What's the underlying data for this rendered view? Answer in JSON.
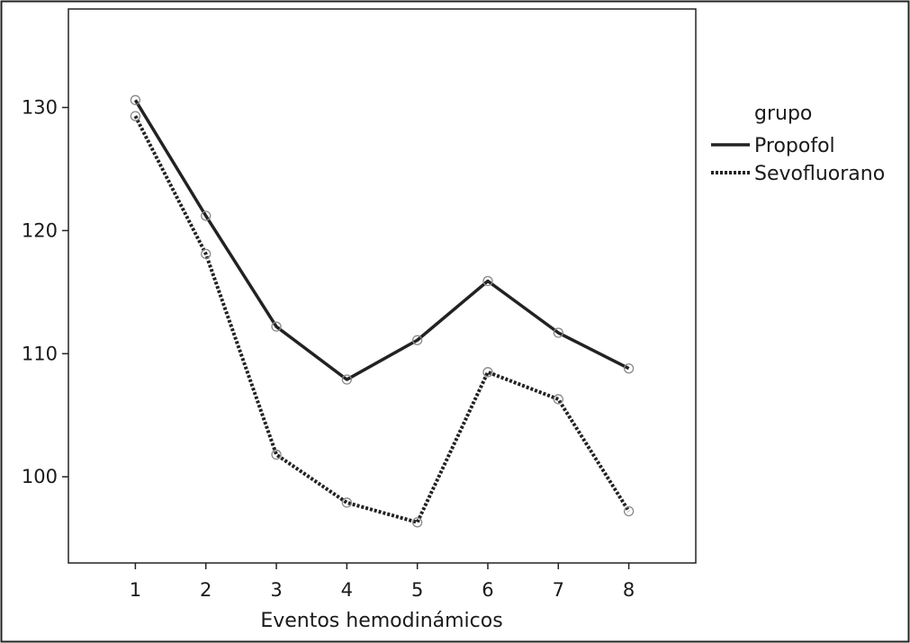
{
  "chart_data": {
    "type": "line",
    "title": "",
    "xlabel": "Eventos hemodinámicos",
    "ylabel": "",
    "x": [
      1,
      2,
      3,
      4,
      5,
      6,
      7,
      8
    ],
    "xlim": [
      0.05,
      8.95
    ],
    "ylim": [
      93,
      138
    ],
    "yticks": [
      100,
      110,
      120,
      130
    ],
    "grid": false,
    "legend": {
      "title": "grupo",
      "position": "right-outside"
    },
    "series": [
      {
        "name": "Propofol",
        "style": "solid",
        "color": "#222222",
        "values": [
          130.6,
          121.2,
          112.2,
          107.9,
          111.1,
          115.9,
          111.7,
          108.8
        ]
      },
      {
        "name": "Sevofluorano",
        "style": "dotted",
        "color": "#222222",
        "values": [
          129.3,
          118.1,
          101.8,
          97.9,
          96.3,
          108.5,
          106.3,
          97.2
        ]
      }
    ]
  }
}
